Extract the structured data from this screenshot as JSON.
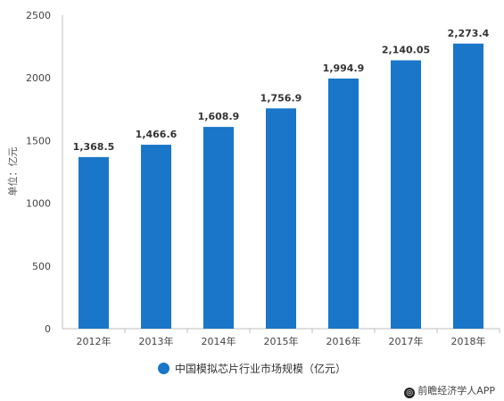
{
  "chart_data": {
    "type": "bar",
    "categories": [
      "2012年",
      "2013年",
      "2014年",
      "2015年",
      "2016年",
      "2017年",
      "2018年"
    ],
    "values": [
      1368.5,
      1466.6,
      1608.9,
      1756.9,
      1994.9,
      2140.05,
      2273.4
    ],
    "data_labels": [
      "1,368.5",
      "1,466.6",
      "1,608.9",
      "1,756.9",
      "1,994.9",
      "2,140.05",
      "2,273.4"
    ],
    "ylabel": "单位：亿元",
    "ylim": [
      0,
      2500
    ],
    "yticks": [
      0,
      500,
      1000,
      1500,
      2000,
      2500
    ],
    "grid": false,
    "legend_position": "bottom",
    "series": [
      {
        "name": "中国模拟芯片行业市场规模（亿元）",
        "color": "#1976c8"
      }
    ]
  },
  "source": {
    "label": "前瞻经济学人APP",
    "icon": "qianzhan-logo-icon"
  }
}
